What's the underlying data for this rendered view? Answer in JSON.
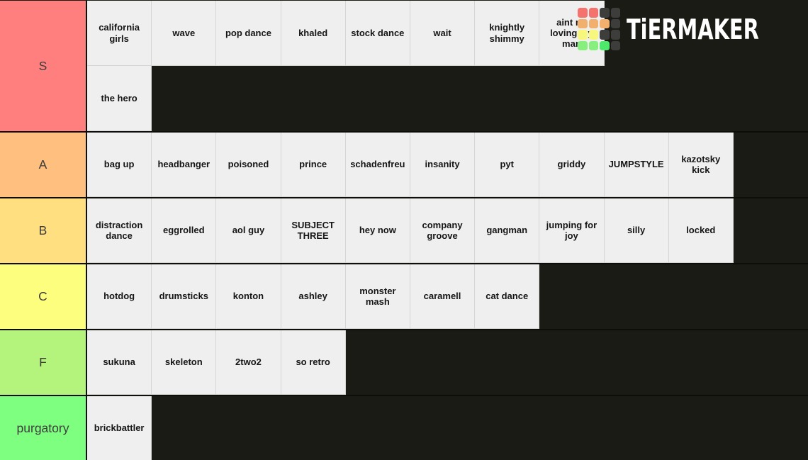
{
  "page": {
    "background": "#1b1b16",
    "cell_background": "#efefef",
    "cell_divider": "#d5d5d5",
    "row_border": "#0d0d0a",
    "tier_text_color": "#3c3c3c"
  },
  "logo": {
    "text": "TiERMAKER",
    "text_color": "#ffffff",
    "grid": [
      [
        "#f4736e",
        "#f4736e",
        "#3d3d3b",
        "#3d3d3b"
      ],
      [
        "#f2b06e",
        "#f2b06e",
        "#f2b06e",
        "#3d3d3b"
      ],
      [
        "#f7f77d",
        "#f7f77d",
        "#3d3d3b",
        "#3d3d3b"
      ],
      [
        "#86ef7d",
        "#86ef7d",
        "#4ee96a",
        "#3d3d3b"
      ]
    ]
  },
  "tiers": [
    {
      "label": "S",
      "color": "#ff7f7f",
      "items": [
        "california girls",
        "wave",
        "pop dance",
        "khaled",
        "stock dance",
        "wait",
        "knightly shimmy",
        "aint no loving my man",
        "the hero"
      ]
    },
    {
      "label": "A",
      "color": "#ffbf7f",
      "items": [
        "bag up",
        "headbanger",
        "poisoned",
        "prince",
        "schadenfreu",
        "insanity",
        "pyt",
        "griddy",
        "JUMPSTYLE",
        "kazotsky kick"
      ]
    },
    {
      "label": "B",
      "color": "#ffdf7f",
      "items": [
        "distraction dance",
        "eggrolled",
        "aol guy",
        "SUBJECT THREE",
        "hey now",
        "company groove",
        "gangman",
        "jumping for joy",
        "silly",
        "locked"
      ]
    },
    {
      "label": "C",
      "color": "#fdfd7e",
      "items": [
        "hotdog",
        "drumsticks",
        "konton",
        "ashley",
        "monster mash",
        "caramell",
        "cat dance"
      ]
    },
    {
      "label": "F",
      "color": "#b5f47c",
      "items": [
        "sukuna",
        "skeleton",
        "2two2",
        "so retro"
      ]
    },
    {
      "label": "purgatory",
      "color": "#7fff7f",
      "items": [
        "brickbattler"
      ]
    }
  ]
}
